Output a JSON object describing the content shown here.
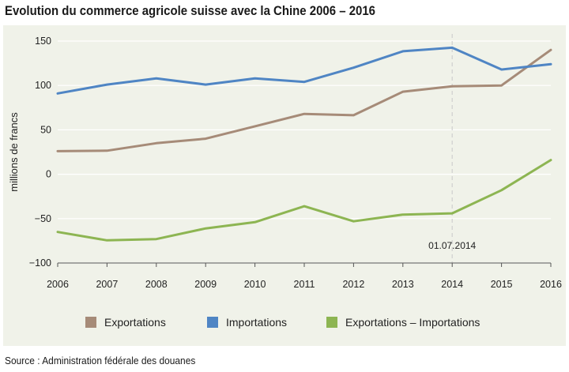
{
  "title": "Evolution du commerce agricole suisse avec la Chine 2006 – 2016",
  "source": "Source : Administration fédérale des douanes",
  "chart_data": {
    "type": "line",
    "title": "Evolution du commerce agricole suisse avec la Chine 2006 – 2016",
    "xlabel": "",
    "ylabel": "millions de francs",
    "x": [
      2006,
      2007,
      2008,
      2009,
      2010,
      2011,
      2012,
      2013,
      2014,
      2015,
      2016
    ],
    "ylim": [
      -100,
      150
    ],
    "yticks": [
      150,
      100,
      50,
      0,
      -50,
      -100
    ],
    "yticklabels": [
      "150",
      "100",
      "50",
      "0",
      "−50",
      "−100"
    ],
    "grid": true,
    "legend_position": "bottom",
    "series": [
      {
        "name": "Exportations",
        "color": "#a68b78",
        "values": [
          26,
          26.5,
          35,
          40,
          54,
          68,
          66.5,
          93,
          99,
          100,
          140
        ]
      },
      {
        "name": "Importations",
        "color": "#4f85c4",
        "values": [
          91,
          101,
          108,
          101,
          108,
          104,
          120,
          138.5,
          142.5,
          118,
          124
        ]
      },
      {
        "name": "Exportations – Importations",
        "color": "#8db552",
        "values": [
          -65,
          -74.5,
          -73,
          -61,
          -54,
          -36,
          -53,
          -45.5,
          -44,
          -18,
          16
        ]
      }
    ],
    "annotation": {
      "x": 2014,
      "label": "01.07.2014"
    }
  }
}
